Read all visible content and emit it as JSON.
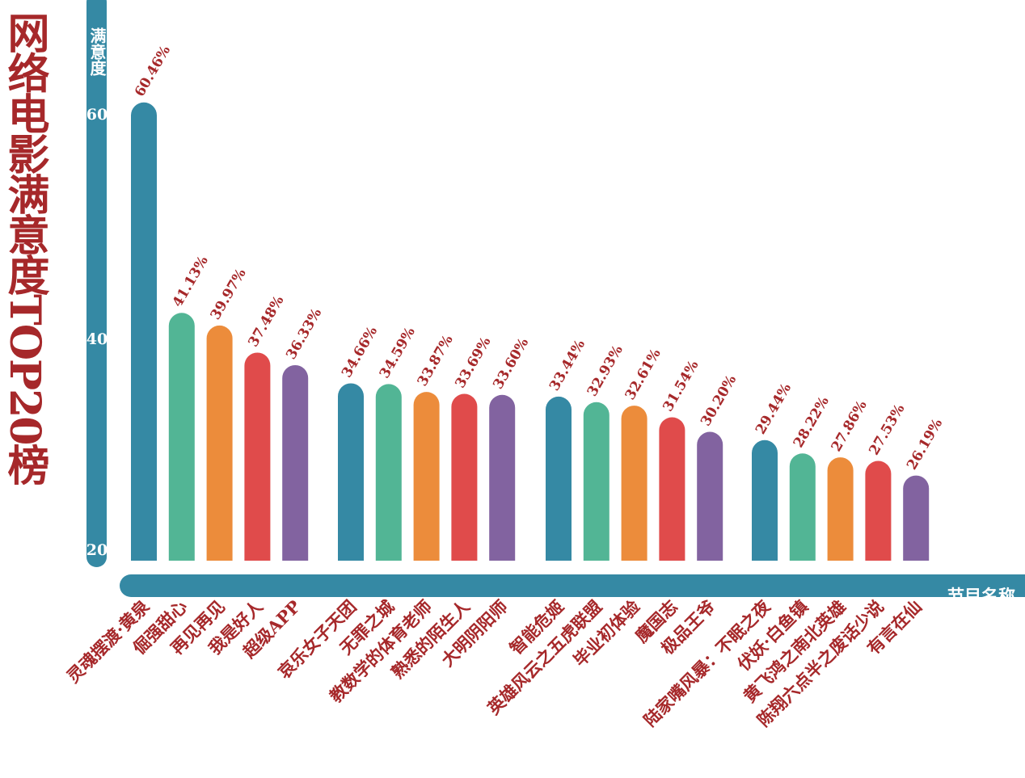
{
  "chart_data": {
    "type": "bar",
    "title": "网络电影满意度TOP20榜",
    "ylabel": "满意度",
    "xlabel": "节目名称",
    "ylim": [
      20,
      62
    ],
    "yticks": [
      "20",
      "40",
      "60"
    ],
    "categories": [
      "灵魂摆渡·黄泉",
      "倔强甜心",
      "再见再见",
      "我是好人",
      "超级APP",
      "哀乐女子天团",
      "无罪之城",
      "教数学的体育老师",
      "熟悉的陌生人",
      "大明阴阳师",
      "智能危姬",
      "英雄风云之五虎联盟",
      "毕业初体验",
      "魔国志",
      "极品王爷",
      "陆家嘴风暴：不眠之夜",
      "伏妖·白鱼镇",
      "黄飞鸿之南北英雄",
      "陈翔六点半之废话少说",
      "有言在仙"
    ],
    "values": [
      60.46,
      41.13,
      39.97,
      37.48,
      36.33,
      34.66,
      34.59,
      33.87,
      33.69,
      33.6,
      33.44,
      32.93,
      32.61,
      31.54,
      30.2,
      29.44,
      28.22,
      27.86,
      27.53,
      26.19
    ],
    "value_labels": [
      "60.46%",
      "41.13%",
      "39.97%",
      "37.48%",
      "36.33%",
      "34.66%",
      "34.59%",
      "33.87%",
      "33.69%",
      "33.60%",
      "33.44%",
      "32.93%",
      "32.61%",
      "31.54%",
      "30.20%",
      "29.44%",
      "28.22%",
      "27.86%",
      "27.53%",
      "26.19%"
    ],
    "colors": [
      "#3589a4",
      "#52b595",
      "#ec8c3b",
      "#e04b4b",
      "#8263a0"
    ],
    "grid": false
  }
}
